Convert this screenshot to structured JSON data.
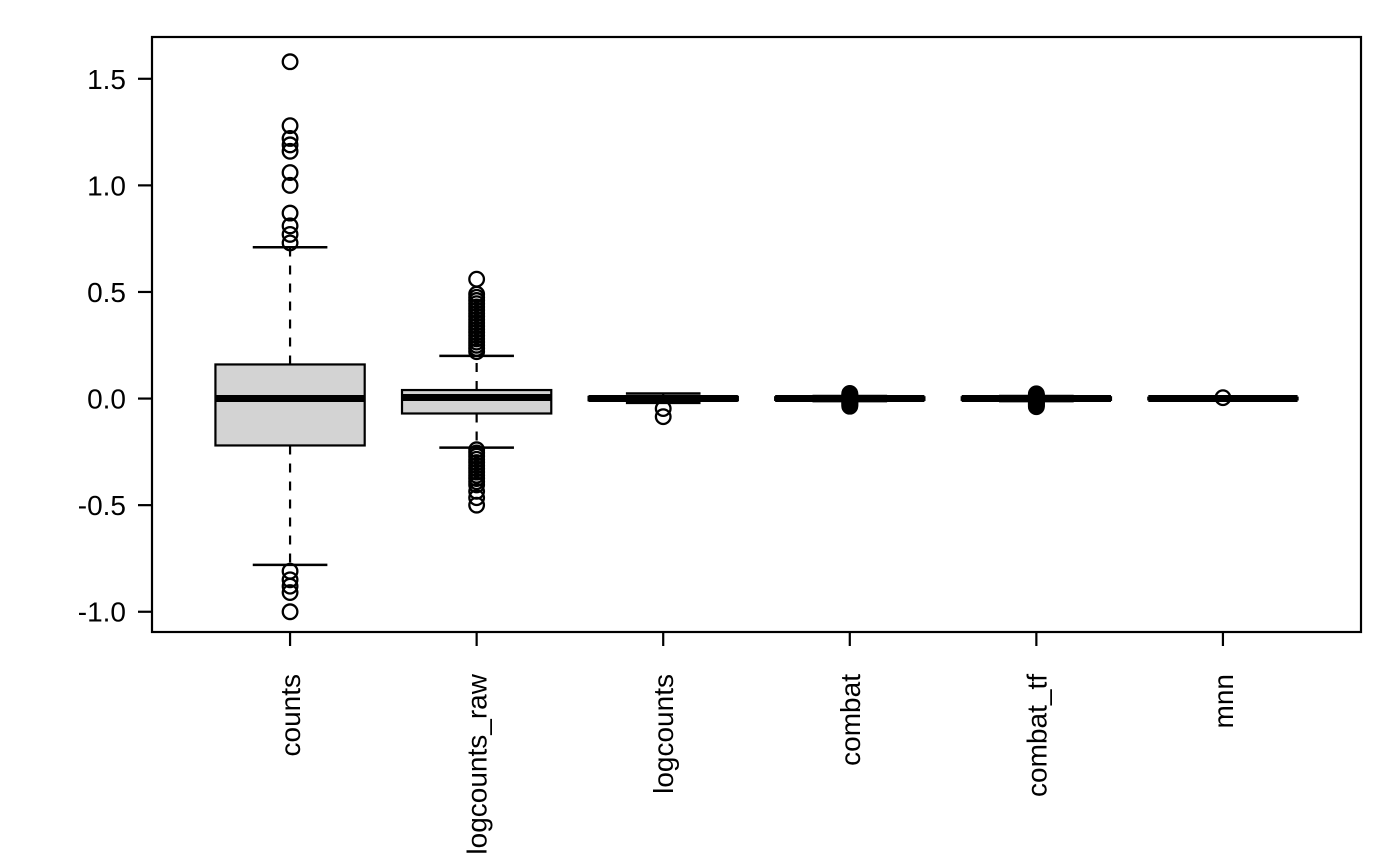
{
  "figure": {
    "description": "R base-graphics boxplot of relative log expression across normalization methods",
    "background": "#ffffff",
    "foreground": "#000000"
  },
  "chart_data": {
    "type": "boxplot",
    "title": "",
    "xlabel": "",
    "ylabel": "",
    "grid": false,
    "legend": null,
    "box_fill": "#d3d3d3",
    "line_color": "#000000",
    "ylim": [
      -1.095,
      1.696
    ],
    "yticks": {
      "values": [
        -1.0,
        -0.5,
        0.0,
        0.5,
        1.0,
        1.5
      ],
      "labels": [
        "-1.0",
        "-0.5",
        "0.0",
        "0.5",
        "1.0",
        "1.5"
      ]
    },
    "categories": [
      "counts",
      "logcounts_raw",
      "logcounts",
      "combat",
      "combat_tf",
      "mnn"
    ],
    "series": [
      {
        "name": "counts",
        "q1": -0.22,
        "median": 0.0,
        "q3": 0.16,
        "whisker_low": -0.78,
        "whisker_high": 0.71,
        "outliers": [
          1.58,
          1.28,
          1.22,
          1.19,
          1.16,
          1.06,
          1.0,
          0.87,
          0.81,
          0.77,
          0.73,
          -0.81,
          -0.85,
          -0.88,
          -0.91,
          -1.0
        ]
      },
      {
        "name": "logcounts_raw",
        "q1": -0.07,
        "median": 0.005,
        "q3": 0.04,
        "whisker_low": -0.23,
        "whisker_high": 0.2,
        "outliers": [
          0.56,
          0.49,
          0.475,
          0.46,
          0.445,
          0.43,
          0.415,
          0.4,
          0.385,
          0.37,
          0.355,
          0.34,
          0.325,
          0.31,
          0.295,
          0.28,
          0.265,
          0.25,
          0.235,
          0.22,
          -0.24,
          -0.255,
          -0.27,
          -0.285,
          -0.3,
          -0.315,
          -0.33,
          -0.345,
          -0.36,
          -0.375,
          -0.39,
          -0.405,
          -0.435,
          -0.465,
          -0.5
        ]
      },
      {
        "name": "logcounts",
        "q1": -0.008,
        "median": 0.0,
        "q3": 0.008,
        "whisker_low": -0.02,
        "whisker_high": 0.024,
        "outliers": [
          -0.047,
          -0.085
        ]
      },
      {
        "name": "combat",
        "q1": -0.006,
        "median": 0.0,
        "q3": 0.006,
        "whisker_low": -0.012,
        "whisker_high": 0.012,
        "outliers": [
          0.024,
          0.02,
          0.016,
          0.012,
          0.008,
          0.004,
          0.0,
          -0.004,
          -0.008,
          -0.012,
          -0.016,
          -0.02,
          -0.024,
          -0.028,
          -0.032,
          -0.036
        ]
      },
      {
        "name": "combat_tf",
        "q1": -0.006,
        "median": 0.0,
        "q3": 0.006,
        "whisker_low": -0.012,
        "whisker_high": 0.012,
        "outliers": [
          0.022,
          0.018,
          0.014,
          0.01,
          0.006,
          0.002,
          -0.002,
          -0.006,
          -0.01,
          -0.014,
          -0.018,
          -0.022,
          -0.026,
          -0.03,
          -0.034,
          -0.038
        ]
      },
      {
        "name": "mnn",
        "q1": -0.004,
        "median": 0.0,
        "q3": 0.004,
        "whisker_low": -0.008,
        "whisker_high": 0.008,
        "outliers": [
          0.004
        ]
      }
    ]
  }
}
